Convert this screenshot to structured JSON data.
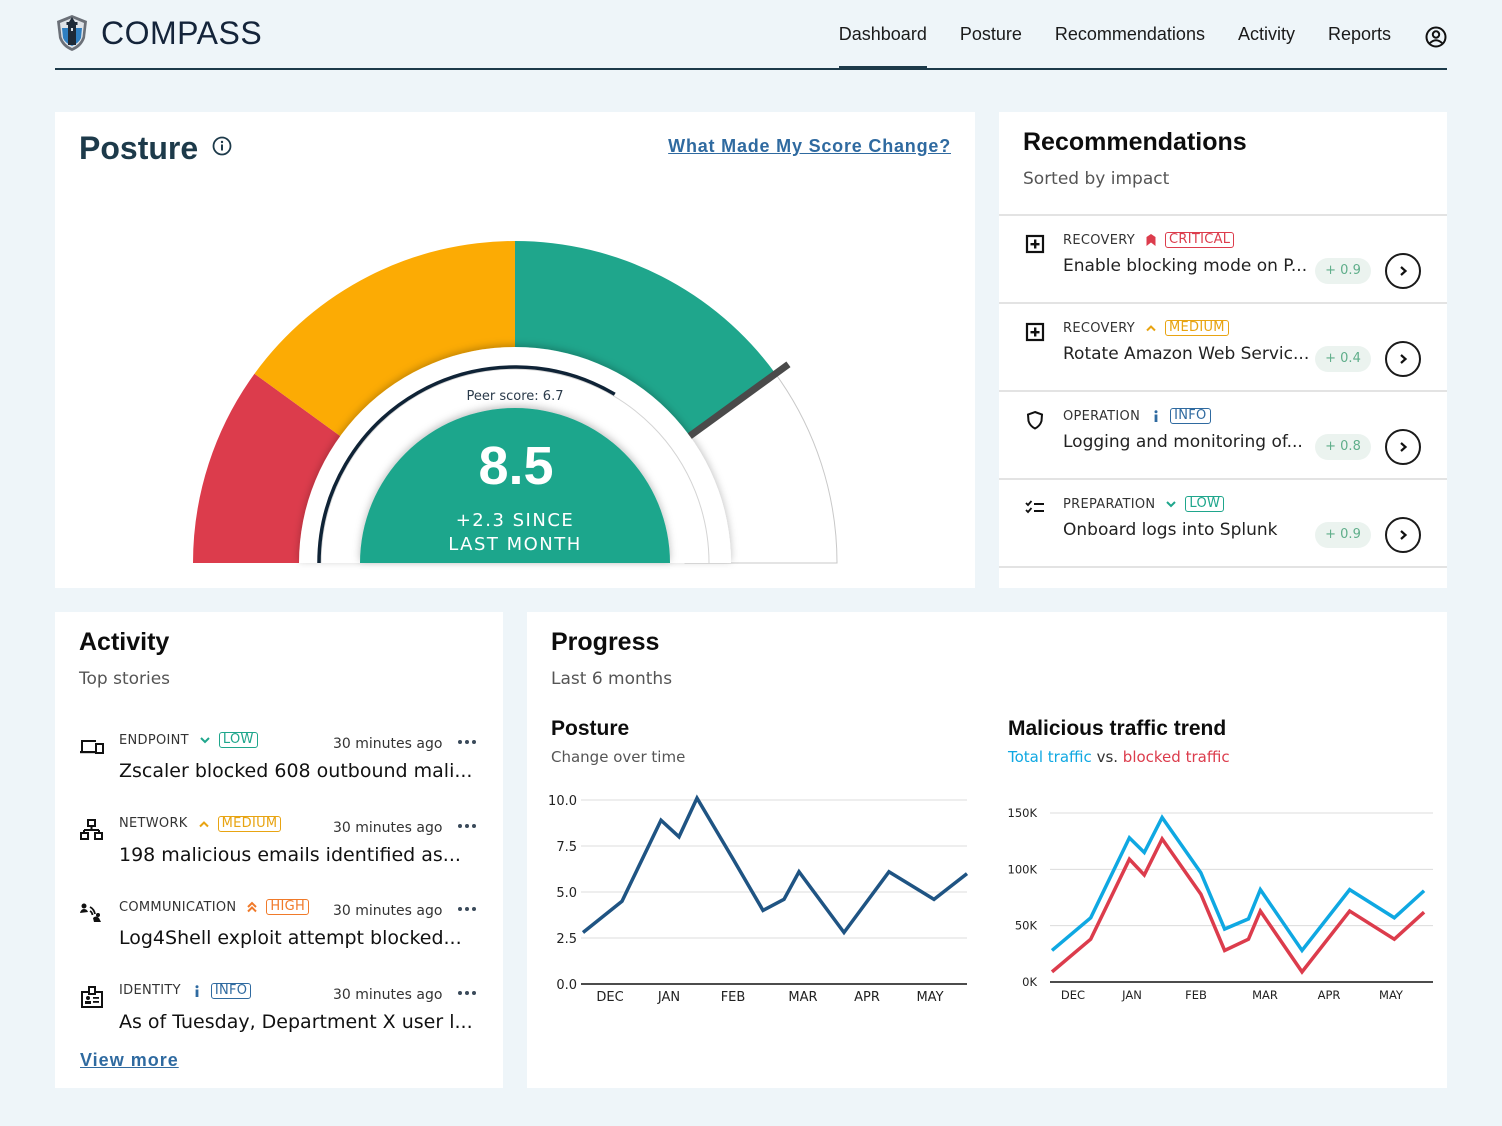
{
  "header": {
    "logo_text": "COMPASS",
    "nav": [
      {
        "label": "Dashboard",
        "active": true
      },
      {
        "label": "Posture",
        "active": false
      },
      {
        "label": "Recommendations",
        "active": false
      },
      {
        "label": "Activity",
        "active": false
      },
      {
        "label": "Reports",
        "active": false
      }
    ],
    "user_icon": "user-circle-icon"
  },
  "posture": {
    "title": "Posture",
    "info_icon": "info-circle-icon",
    "link": "What Made My Score Change?",
    "score": "8.5",
    "score_value": 8.5,
    "score_max": 10,
    "change_line1": "+2.3 SINCE",
    "change_line2": "LAST MONTH",
    "peer_label": "Peer score: 6.7",
    "peer_value": 6.7,
    "needle_value": 8.0,
    "bands": [
      {
        "from": 0,
        "to": 2,
        "color": "#dc3c4c"
      },
      {
        "from": 2,
        "to": 5,
        "color": "#fcab04"
      },
      {
        "from": 5,
        "to": 8,
        "color": "#1fa68c"
      },
      {
        "from": 8,
        "to": 10,
        "color": "#ffffff"
      }
    ],
    "colors": {
      "center": "#1fa68c",
      "peer_arc": "#0f2336",
      "needle": "#4a4a4a"
    }
  },
  "recommendations": {
    "title": "Recommendations",
    "subtitle": "Sorted by impact",
    "items": [
      {
        "icon": "plus-square-icon",
        "category": "RECOVERY",
        "severity": "CRITICAL",
        "severity_icon": "critical-bookmark-icon",
        "color": "#dc3c4c",
        "text": "Enable blocking mode on P...",
        "impact": "+ 0.9"
      },
      {
        "icon": "plus-square-icon",
        "category": "RECOVERY",
        "severity": "MEDIUM",
        "severity_icon": "chevron-up-icon",
        "color": "#e8a412",
        "text": "Rotate Amazon Web Servic...",
        "impact": "+ 0.4"
      },
      {
        "icon": "shield-icon",
        "category": "OPERATION",
        "severity": "INFO",
        "severity_icon": "info-i-icon",
        "color": "#2f6aa0",
        "text": "Logging and monitoring of...",
        "impact": "+ 0.8"
      },
      {
        "icon": "checklist-icon",
        "category": "PREPARATION",
        "severity": "LOW",
        "severity_icon": "chevron-down-icon",
        "color": "#1fa68c",
        "text": "Onboard logs into Splunk",
        "impact": "+ 0.9"
      }
    ]
  },
  "activity": {
    "title": "Activity",
    "subtitle": "Top stories",
    "items": [
      {
        "icon": "devices-icon",
        "category": "ENDPOINT",
        "severity": "LOW",
        "severity_icon": "chevron-down-icon",
        "color": "#1fa68c",
        "time": "30 minutes ago",
        "text": "Zscaler blocked 608 outbound mali..."
      },
      {
        "icon": "network-icon",
        "category": "NETWORK",
        "severity": "MEDIUM",
        "severity_icon": "chevron-up-icon",
        "color": "#e8a412",
        "time": "30 minutes ago",
        "text": "198 malicious emails identified as..."
      },
      {
        "icon": "communication-icon",
        "category": "COMMUNICATION",
        "severity": "HIGH",
        "severity_icon": "double-chevron-up-icon",
        "color": "#f07a2a",
        "time": "30 minutes ago",
        "text": "Log4Shell exploit attempt blocked..."
      },
      {
        "icon": "id-badge-icon",
        "category": "IDENTITY",
        "severity": "INFO",
        "severity_icon": "info-i-icon",
        "color": "#2f6aa0",
        "time": "30 minutes ago",
        "text": "As of Tuesday, Department X user l..."
      }
    ],
    "view_more": "View more"
  },
  "progress": {
    "title": "Progress",
    "subtitle": "Last 6 months"
  },
  "chart_data": [
    {
      "type": "line",
      "title": "Posture",
      "subtitle": "Change over time",
      "xlabel": "",
      "ylabel": "",
      "x_ticks": [
        "DEC",
        "JAN",
        "FEB",
        "MAR",
        "APR",
        "MAY"
      ],
      "y_ticks": [
        "0.0",
        "2.5",
        "5.0",
        "7.5",
        "10.0"
      ],
      "ylim": [
        0,
        10
      ],
      "grid": true,
      "x": [
        0,
        0.65,
        1.3,
        1.6,
        1.9,
        2.5,
        3.0,
        3.35,
        3.6,
        4.35,
        5.1,
        5.85,
        6.4
      ],
      "series": [
        {
          "name": "Posture",
          "color": "#1f5483",
          "values": [
            2.8,
            4.5,
            8.9,
            8.0,
            10.1,
            6.8,
            4.0,
            4.6,
            6.1,
            2.8,
            6.1,
            4.6,
            6.0
          ]
        }
      ]
    },
    {
      "type": "line",
      "title": "Malicious traffic trend",
      "subtitle_parts": [
        {
          "text": "Total traffic",
          "color": "#0fa8e2"
        },
        {
          "text": " vs. ",
          "color": "#333333"
        },
        {
          "text": "blocked traffic",
          "color": "#dc3c4c"
        }
      ],
      "xlabel": "",
      "ylabel": "",
      "x_ticks": [
        "DEC",
        "JAN",
        "FEB",
        "MAR",
        "APR",
        "MAY"
      ],
      "y_ticks": [
        "0K",
        "50K",
        "100K",
        "150K"
      ],
      "ylim": [
        0,
        150000
      ],
      "grid": true,
      "x": [
        0,
        0.65,
        1.3,
        1.55,
        1.85,
        2.5,
        2.9,
        3.3,
        3.5,
        4.2,
        5.0,
        5.75,
        6.25
      ],
      "series": [
        {
          "name": "Total traffic",
          "color": "#0fa8e2",
          "values": [
            28000,
            57000,
            128000,
            115000,
            146000,
            97000,
            47000,
            56000,
            82000,
            28000,
            82000,
            57000,
            81000
          ]
        },
        {
          "name": "blocked traffic",
          "color": "#dc3c4c",
          "values": [
            9000,
            38000,
            109000,
            95000,
            127000,
            78000,
            28000,
            38000,
            63000,
            9000,
            63000,
            38000,
            62000
          ]
        }
      ]
    }
  ]
}
